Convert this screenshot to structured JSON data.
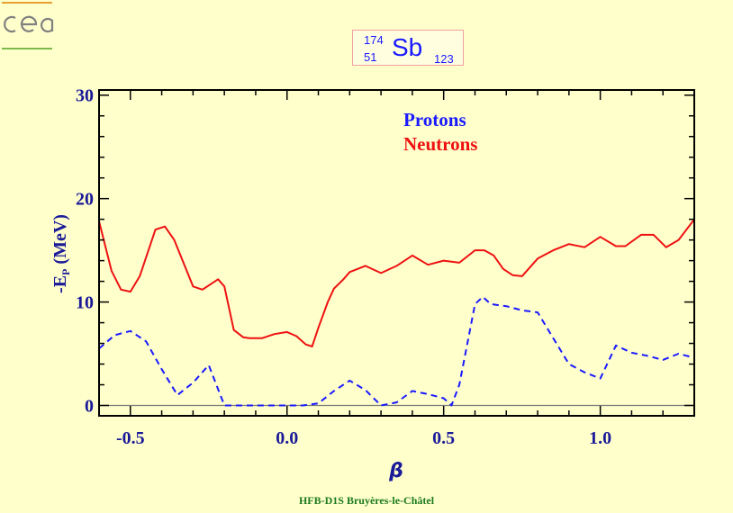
{
  "logo_text": "cea",
  "title": {
    "mass_number": "174",
    "atomic_number": "51",
    "symbol": "Sb",
    "neutron_number": "123"
  },
  "footer": "HFB-D1S Bruyères-le-Châtel",
  "chart_data": {
    "type": "line",
    "xlabel": "β",
    "ylabel": "-EP (MeV)",
    "xlim": [
      -0.6,
      1.3
    ],
    "ylim": [
      -1,
      30.5
    ],
    "xticks": [
      "-0.5",
      "0.0",
      "0.5",
      "1.0"
    ],
    "xtick_values": [
      -0.5,
      0.0,
      0.5,
      1.0
    ],
    "yticks": [
      "0",
      "10",
      "20",
      "30"
    ],
    "ytick_values": [
      0,
      10,
      20,
      30
    ],
    "legend_placement": "top-center",
    "colors": {
      "protons": "#1a1aff",
      "neutrons": "#ee1111"
    },
    "series": [
      {
        "name": "Protons",
        "style": "dashed",
        "x": [
          -0.6,
          -0.55,
          -0.5,
          -0.45,
          -0.4,
          -0.35,
          -0.3,
          -0.25,
          -0.2,
          -0.15,
          -0.1,
          -0.05,
          0.0,
          0.05,
          0.1,
          0.15,
          0.2,
          0.25,
          0.3,
          0.35,
          0.4,
          0.45,
          0.5,
          0.525,
          0.55,
          0.6,
          0.625,
          0.65,
          0.7,
          0.75,
          0.8,
          0.85,
          0.9,
          0.95,
          1.0,
          1.05,
          1.1,
          1.15,
          1.2,
          1.25,
          1.3
        ],
        "y": [
          5.5,
          6.8,
          7.2,
          6.2,
          3.5,
          1.0,
          2.2,
          3.9,
          0.0,
          0.0,
          0.0,
          0.0,
          0.0,
          0.0,
          0.2,
          1.4,
          2.4,
          1.5,
          0.0,
          0.3,
          1.4,
          1.1,
          0.7,
          0.0,
          2.0,
          9.8,
          10.5,
          9.8,
          9.6,
          9.2,
          9.0,
          6.5,
          4.0,
          3.2,
          2.6,
          5.8,
          5.1,
          4.8,
          4.4,
          5.0,
          4.6
        ]
      },
      {
        "name": "Neutrons",
        "style": "solid",
        "x": [
          -0.6,
          -0.56,
          -0.53,
          -0.5,
          -0.47,
          -0.42,
          -0.39,
          -0.36,
          -0.3,
          -0.27,
          -0.22,
          -0.2,
          -0.17,
          -0.14,
          -0.12,
          -0.08,
          -0.04,
          0.0,
          0.03,
          0.06,
          0.08,
          0.1,
          0.13,
          0.15,
          0.18,
          0.2,
          0.25,
          0.3,
          0.35,
          0.4,
          0.45,
          0.5,
          0.55,
          0.6,
          0.63,
          0.66,
          0.69,
          0.72,
          0.75,
          0.8,
          0.85,
          0.9,
          0.95,
          1.0,
          1.05,
          1.08,
          1.13,
          1.17,
          1.21,
          1.25,
          1.3
        ],
        "y": [
          17.8,
          13.0,
          11.2,
          11.0,
          12.5,
          17.0,
          17.3,
          16.0,
          11.5,
          11.2,
          12.2,
          11.5,
          7.3,
          6.6,
          6.5,
          6.5,
          6.9,
          7.1,
          6.7,
          5.9,
          5.7,
          7.5,
          10.0,
          11.3,
          12.2,
          12.9,
          13.5,
          12.8,
          13.5,
          14.5,
          13.6,
          14.0,
          13.8,
          15.0,
          15.0,
          14.5,
          13.2,
          12.6,
          12.5,
          14.2,
          15.0,
          15.6,
          15.3,
          16.3,
          15.4,
          15.4,
          16.5,
          16.5,
          15.3,
          16.0,
          18.0
        ]
      }
    ]
  }
}
